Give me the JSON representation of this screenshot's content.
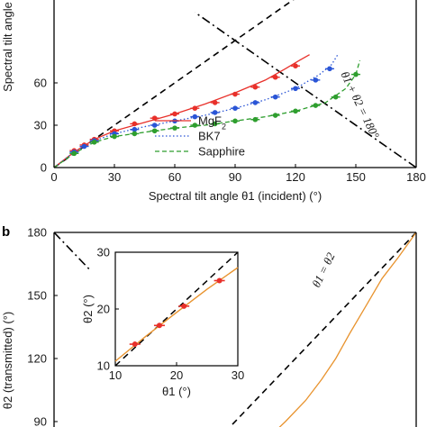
{
  "chart_data": [
    {
      "type": "line",
      "xlabel": "Spectral tilt angle θ1 (incident) (°)",
      "ylabel": "Spectral tilt angle",
      "xlim": [
        0,
        180
      ],
      "ylim": [
        0,
        80
      ],
      "x_ticks": [
        "0",
        "30",
        "60",
        "90",
        "120",
        "150",
        "180"
      ],
      "y_ticks": [
        "0",
        "30",
        "60"
      ],
      "annotation": "θ1 + θ2 = 180°",
      "legend_position": "lower-right",
      "series": [
        {
          "name": "MgF2",
          "color": "#e8302a",
          "style": "solid",
          "curve": [
            [
              0,
              0
            ],
            [
              10,
              11
            ],
            [
              20,
              20
            ],
            [
              30,
              26
            ],
            [
              45,
              32
            ],
            [
              60,
              38
            ],
            [
              75,
              45
            ],
            [
              90,
              53
            ],
            [
              105,
              62
            ],
            [
              115,
              70
            ],
            [
              122,
              76
            ],
            [
              127,
              80
            ]
          ],
          "points": [
            [
              10,
              12
            ],
            [
              15,
              16
            ],
            [
              20,
              20
            ],
            [
              30,
              26
            ],
            [
              40,
              31
            ],
            [
              50,
              35
            ],
            [
              60,
              38
            ],
            [
              70,
              42
            ],
            [
              80,
              46
            ],
            [
              90,
              52
            ],
            [
              100,
              57
            ],
            [
              110,
              64
            ],
            [
              120,
              72
            ]
          ]
        },
        {
          "name": "BK7",
          "color": "#2a55d6",
          "style": "dotted",
          "curve": [
            [
              0,
              0
            ],
            [
              10,
              11
            ],
            [
              20,
              19
            ],
            [
              30,
              24
            ],
            [
              45,
              29
            ],
            [
              60,
              33
            ],
            [
              75,
              37
            ],
            [
              90,
              42
            ],
            [
              105,
              48
            ],
            [
              120,
              56
            ],
            [
              132,
              66
            ],
            [
              138,
              73
            ],
            [
              141,
              80
            ]
          ],
          "points": [
            [
              10,
              11
            ],
            [
              15,
              15
            ],
            [
              20,
              19
            ],
            [
              30,
              24
            ],
            [
              40,
              27
            ],
            [
              50,
              30
            ],
            [
              60,
              33
            ],
            [
              70,
              36
            ],
            [
              80,
              39
            ],
            [
              90,
              42
            ],
            [
              100,
              46
            ],
            [
              110,
              50
            ],
            [
              120,
              56
            ],
            [
              130,
              62
            ],
            [
              137,
              70
            ]
          ]
        },
        {
          "name": "Sapphire",
          "color": "#2e9e2e",
          "style": "dashed",
          "curve": [
            [
              0,
              0
            ],
            [
              10,
              10
            ],
            [
              20,
              18
            ],
            [
              30,
              22
            ],
            [
              45,
              25
            ],
            [
              60,
              28
            ],
            [
              75,
              30
            ],
            [
              90,
              33
            ],
            [
              105,
              36
            ],
            [
              120,
              40
            ],
            [
              135,
              46
            ],
            [
              145,
              56
            ],
            [
              150,
              66
            ],
            [
              152,
              76
            ]
          ],
          "points": [
            [
              10,
              10
            ],
            [
              20,
              18
            ],
            [
              30,
              22
            ],
            [
              40,
              24
            ],
            [
              50,
              26
            ],
            [
              60,
              28
            ],
            [
              70,
              30
            ],
            [
              80,
              31
            ],
            [
              90,
              33
            ],
            [
              100,
              34
            ],
            [
              110,
              37
            ],
            [
              120,
              40
            ],
            [
              130,
              44
            ],
            [
              140,
              50
            ],
            [
              150,
              66
            ]
          ]
        }
      ]
    },
    {
      "type": "line",
      "panel_label": "b",
      "ylabel": "θ2 (transmitted) (°)",
      "ylim": [
        85,
        180
      ],
      "y_ticks": [
        "180",
        "150",
        "120",
        "90"
      ],
      "annotation": "θ1 = θ2",
      "inset": {
        "xlabel": "θ1 (°)",
        "ylabel": "θ2 (°)",
        "xlim": [
          10,
          30
        ],
        "ylim": [
          10,
          30
        ],
        "x_ticks": [
          "10",
          "20",
          "30"
        ],
        "y_ticks": [
          "10",
          "20",
          "30"
        ],
        "fit": [
          [
            10,
            10.8
          ],
          [
            15,
            15.2
          ],
          [
            20,
            19.4
          ],
          [
            25,
            23.5
          ],
          [
            30,
            27.3
          ]
        ],
        "points": [
          [
            13.2,
            13.8
          ],
          [
            17.2,
            17.1
          ],
          [
            21.2,
            20.5
          ],
          [
            27.0,
            25.0
          ]
        ]
      }
    }
  ],
  "colors": {
    "fit_b": "#e8932e",
    "points_b": "#e8302a"
  }
}
